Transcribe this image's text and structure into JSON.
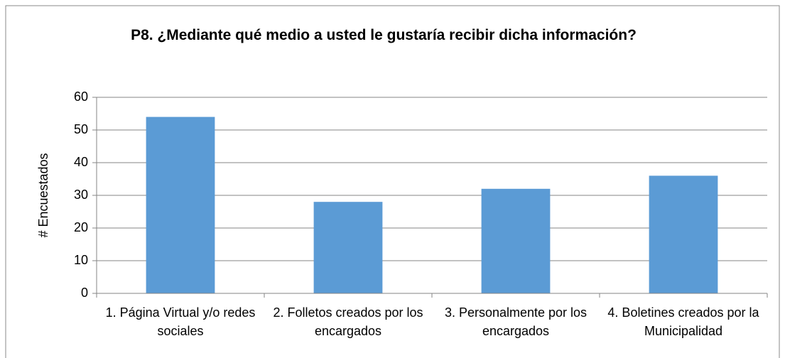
{
  "chart_data": {
    "type": "bar",
    "title": "P8. ¿Mediante qué medio a usted le gustaría recibir dicha información?",
    "y_label": "# Encuestados",
    "categories": [
      "1. Página Virtual y/o redes sociales",
      "2. Folletos creados por los encargados",
      "3. Personalmente por los encargados",
      "4. Boletines creados por la Municipalidad"
    ],
    "values": [
      54,
      28,
      32,
      36
    ],
    "color": "#5b9bd5",
    "ylim": [
      0,
      60
    ],
    "yticks": [
      0,
      10,
      20,
      30,
      40,
      50,
      60
    ],
    "grid": true
  }
}
